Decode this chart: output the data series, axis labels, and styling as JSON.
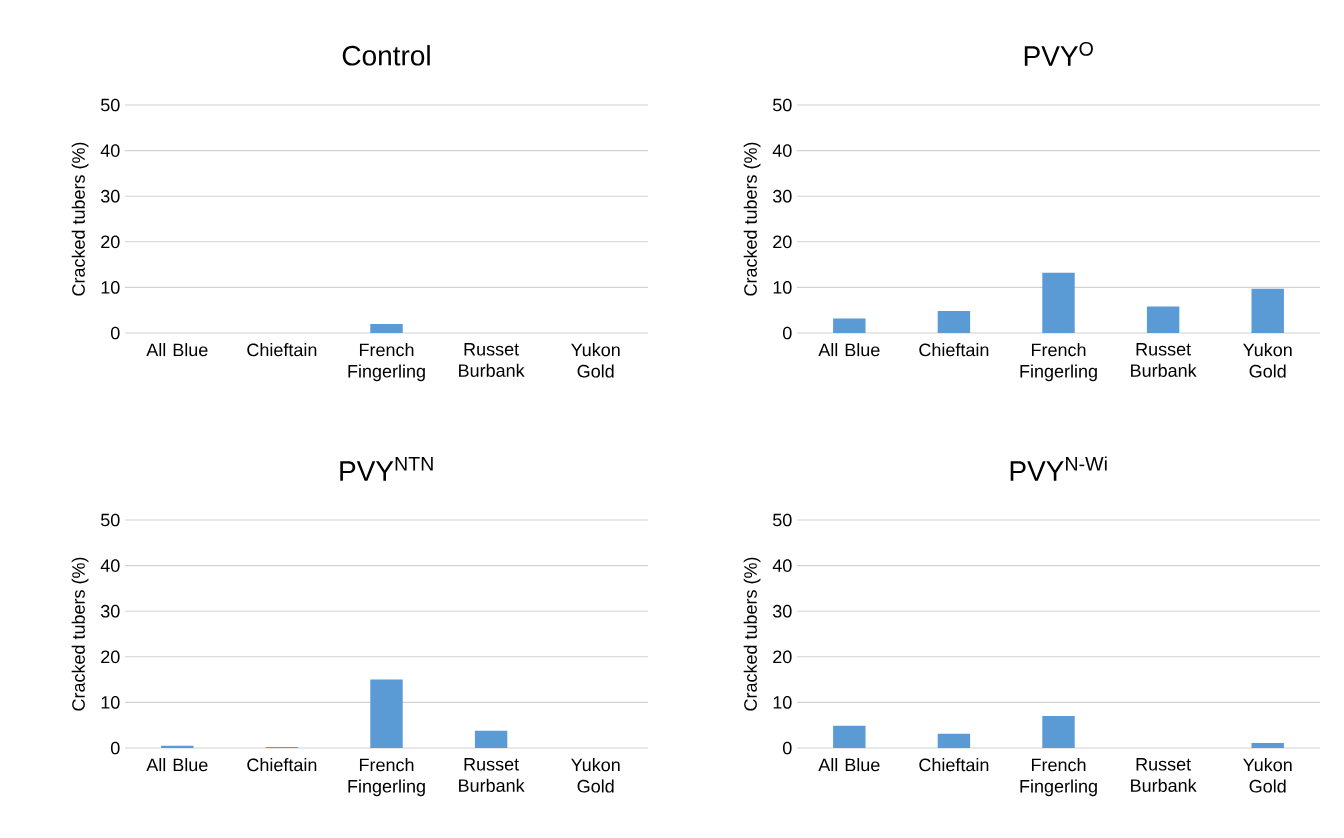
{
  "chart_data": [
    {
      "type": "bar",
      "title": "Control",
      "ylabel": "Cracked tubers (%)",
      "categories": [
        "All Blue",
        "Chieftain",
        "French Fingerling",
        "Russet Burbank",
        "Yukon Gold"
      ],
      "values": [
        0,
        0,
        2.0,
        0,
        0
      ],
      "color": "#5b9bd5",
      "ylim": [
        0,
        50
      ],
      "yticks": [
        0,
        10,
        20,
        30,
        40,
        50
      ],
      "grid": "y"
    },
    {
      "type": "bar",
      "title": "PVY$^{O}$",
      "ylabel": "Cracked tubers (%)",
      "categories": [
        "All Blue",
        "Chieftain",
        "French Fingerling",
        "Russet Burbank",
        "Yukon Gold"
      ],
      "values": [
        3.2,
        4.8,
        13.2,
        5.8,
        9.7
      ],
      "color": "#5b9bd5",
      "ylim": [
        0,
        50
      ],
      "yticks": [
        0,
        10,
        20,
        30,
        40,
        50
      ],
      "grid": "y"
    },
    {
      "type": "bar",
      "title": "PVY$^{NTN}$",
      "ylabel": "Cracked tubers (%)",
      "categories": [
        "All Blue",
        "Chieftain",
        "French Fingerling",
        "Russet Burbank",
        "Yukon Gold"
      ],
      "values": [
        0.5,
        0.2,
        15.0,
        3.8,
        0
      ],
      "color": "#5b9bd5",
      "ylim": [
        0,
        50
      ],
      "yticks": [
        0,
        10,
        20,
        30,
        40,
        50
      ],
      "grid": "y"
    },
    {
      "type": "bar",
      "title": "PVY$^{N-Wi}$",
      "ylabel": "Cracked tubers (%)",
      "categories": [
        "All Blue",
        "Chieftain",
        "French Fingerling",
        "Russet Burbank",
        "Yukon Gold"
      ],
      "values": [
        4.9,
        3.1,
        7.0,
        0,
        1.1
      ],
      "color": "#5b9bd5",
      "ylim": [
        0,
        50
      ],
      "yticks": [
        0,
        10,
        20,
        30,
        40,
        50
      ],
      "grid": "y"
    }
  ]
}
